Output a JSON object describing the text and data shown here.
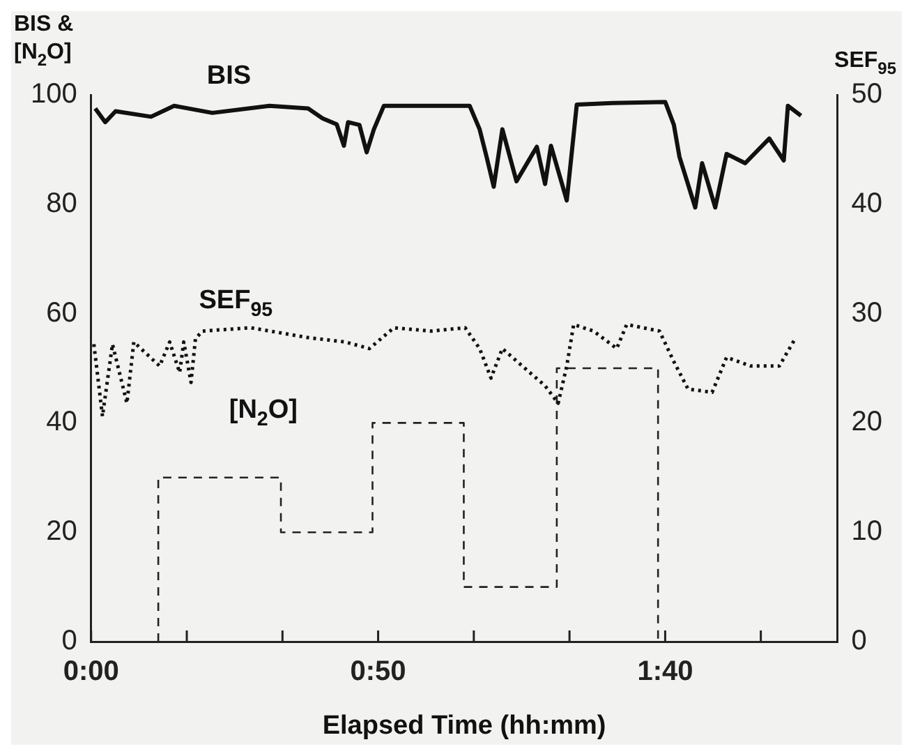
{
  "chart_data": {
    "type": "line",
    "xlabel": "Elapsed Time (hh:mm)",
    "ylabel": "BIS & [N$_{2}$O]",
    "y2label": "SEF$_{95}$",
    "xlim": [
      0,
      2.1667
    ],
    "xticks": [
      {
        "value": 0,
        "label": "0:00"
      },
      {
        "value": 0.2778,
        "label": null
      },
      {
        "value": 0.5556,
        "label": null
      },
      {
        "value": 0.8333,
        "label": "0:50"
      },
      {
        "value": 1.1111,
        "label": null
      },
      {
        "value": 1.3889,
        "label": null
      },
      {
        "value": 1.6667,
        "label": "1:40"
      },
      {
        "value": 1.9444,
        "label": null
      }
    ],
    "ylim": [
      0,
      100
    ],
    "yticks": [
      0,
      20,
      40,
      60,
      80,
      100
    ],
    "y2lim": [
      0,
      50
    ],
    "y2ticks": [
      0,
      10,
      20,
      30,
      40,
      50
    ],
    "grid": false,
    "legend": false,
    "marker": "none",
    "series": [
      {
        "name": "BIS",
        "type": "line",
        "color": "#111111",
        "line_style": "solid",
        "x": [
          0.012,
          0.041,
          0.071,
          0.174,
          0.241,
          0.352,
          0.518,
          0.63,
          0.672,
          0.713,
          0.734,
          0.746,
          0.779,
          0.8,
          0.821,
          0.85,
          0.974,
          1.099,
          1.128,
          1.148,
          1.169,
          1.194,
          1.235,
          1.294,
          1.318,
          1.335,
          1.381,
          1.41,
          1.513,
          1.667,
          1.692,
          1.708,
          1.754,
          1.774,
          1.812,
          1.845,
          1.899,
          1.969,
          2.011,
          2.023,
          2.061
        ],
        "values": [
          97.5,
          95,
          97,
          96,
          98,
          96.7,
          98,
          97.5,
          95.7,
          94.6,
          90.7,
          95,
          94.5,
          89.5,
          93.7,
          98,
          98,
          98,
          93.7,
          88.7,
          83.2,
          93.7,
          84.2,
          90.5,
          83.7,
          90.7,
          80.7,
          98.2,
          98.5,
          98.7,
          94.5,
          88.7,
          79.4,
          87.5,
          79.4,
          89.2,
          87.5,
          92,
          88,
          98,
          96.2
        ]
      },
      {
        "name": "SEF$_{95}$",
        "type": "line",
        "axis": "y2",
        "color": "#111111",
        "line_style": "dotted",
        "x": [
          0.008,
          0.033,
          0.062,
          0.104,
          0.124,
          0.199,
          0.228,
          0.257,
          0.269,
          0.29,
          0.303,
          0.323,
          0.464,
          0.63,
          0.738,
          0.808,
          0.879,
          0.987,
          1.086,
          1.128,
          1.161,
          1.194,
          1.252,
          1.318,
          1.356,
          1.381,
          1.401,
          1.459,
          1.526,
          1.555,
          1.65,
          1.692,
          1.733,
          1.803,
          1.845,
          1.915,
          1.998,
          2.044
        ],
        "values": [
          27.2,
          20.6,
          27.2,
          21.8,
          27.4,
          25.2,
          27.4,
          24.6,
          27.4,
          23.7,
          27.7,
          28.4,
          28.7,
          27.8,
          27.4,
          26.8,
          28.7,
          28.4,
          28.7,
          26.8,
          24.1,
          26.8,
          25.2,
          23.4,
          21.8,
          25.2,
          29,
          28.4,
          26.8,
          29,
          28.4,
          25.6,
          23.1,
          22.8,
          26,
          25.2,
          25.2,
          27.7
        ]
      },
      {
        "name": "[N$_{2}$O]",
        "type": "step",
        "color": "#222222",
        "line_style": "dashed",
        "x": [
          0.195,
          0.195,
          0.551,
          0.817,
          1.082,
          1.352,
          1.646
        ],
        "values": [
          0,
          30,
          20,
          40,
          10,
          50,
          0
        ]
      }
    ]
  }
}
